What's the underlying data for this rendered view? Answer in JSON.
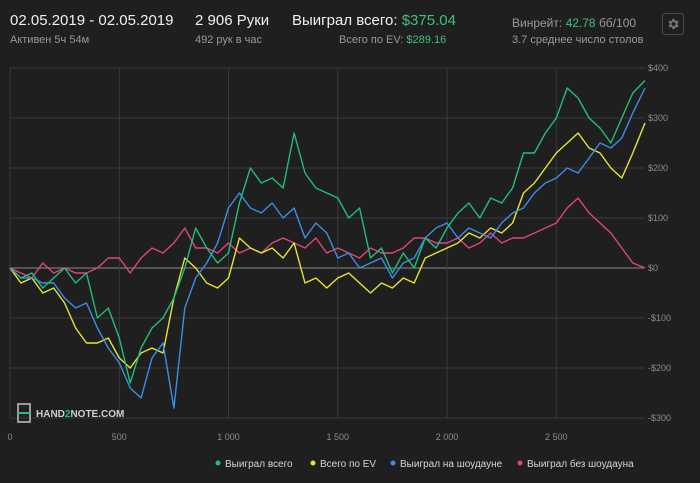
{
  "header": {
    "date_range": "02.05.2019 - 02.05.2019",
    "active": "Активен 5ч 54м",
    "hands": "2 906 Руки",
    "hands_per_hour": "492 рук в час",
    "won_total_label": "Выиграл всего:",
    "won_total_value": "$375.04",
    "ev_label": "Всего по EV:",
    "ev_value": "$289.16",
    "winrate_label": "Винрейт:",
    "winrate_value": "42.78",
    "winrate_unit": "бб/100",
    "avg_tables": "3.7 среднее число столов",
    "settings_icon": "gear-icon"
  },
  "logo": {
    "text_a": "HAND",
    "text_b": "2",
    "text_c": "NOTE.COM"
  },
  "colors": {
    "won": "#1fbf7a",
    "ev": "#e6e632",
    "showdown": "#3a8ee6",
    "non_showdown": "#e0457b",
    "accent_green": "#3cc07a"
  },
  "chart_data": {
    "type": "line",
    "title": "",
    "xlabel": "",
    "ylabel": "",
    "xlim": [
      0,
      2906
    ],
    "ylim": [
      -300,
      400
    ],
    "x_ticks": [
      0,
      500,
      1000,
      1500,
      2000,
      2500
    ],
    "x_tick_labels": [
      "0",
      "500",
      "1 000",
      "1 500",
      "2 000",
      "2 500"
    ],
    "y_ticks": [
      400,
      300,
      200,
      100,
      0,
      -100,
      -200,
      -300
    ],
    "y_tick_labels": [
      "$400",
      "$300",
      "$200",
      "$100",
      "$0",
      "-$100",
      "-$200",
      "-$300"
    ],
    "x": [
      0,
      50,
      100,
      150,
      200,
      250,
      300,
      350,
      400,
      450,
      500,
      550,
      600,
      650,
      700,
      750,
      800,
      850,
      900,
      950,
      1000,
      1050,
      1100,
      1150,
      1200,
      1250,
      1300,
      1350,
      1400,
      1450,
      1500,
      1550,
      1600,
      1650,
      1700,
      1750,
      1800,
      1850,
      1900,
      1950,
      2000,
      2050,
      2100,
      2150,
      2200,
      2250,
      2300,
      2350,
      2400,
      2450,
      2500,
      2550,
      2600,
      2650,
      2700,
      2750,
      2800,
      2850,
      2906
    ],
    "series": [
      {
        "name": "Выиграл всего",
        "values": [
          0,
          -20,
          -10,
          -40,
          -20,
          0,
          -30,
          -10,
          -100,
          -80,
          -140,
          -230,
          -160,
          -120,
          -100,
          -60,
          0,
          80,
          40,
          10,
          30,
          130,
          200,
          170,
          180,
          160,
          270,
          190,
          160,
          150,
          140,
          100,
          120,
          20,
          40,
          -10,
          30,
          0,
          60,
          40,
          80,
          110,
          130,
          100,
          140,
          130,
          160,
          230,
          230,
          270,
          300,
          360,
          340,
          300,
          280,
          250,
          300,
          350,
          375
        ]
      },
      {
        "name": "Всего по EV",
        "values": [
          0,
          -30,
          -20,
          -50,
          -40,
          -70,
          -120,
          -150,
          -150,
          -140,
          -180,
          -200,
          -170,
          -160,
          -170,
          -60,
          20,
          0,
          -30,
          -40,
          -20,
          60,
          40,
          30,
          40,
          20,
          50,
          -30,
          -20,
          -40,
          -20,
          -10,
          -30,
          -50,
          -30,
          -40,
          -20,
          -30,
          20,
          30,
          40,
          50,
          70,
          60,
          80,
          70,
          90,
          150,
          170,
          200,
          230,
          250,
          270,
          240,
          230,
          200,
          180,
          230,
          290
        ]
      },
      {
        "name": "Выиграл на шоудауне",
        "values": [
          0,
          -20,
          -20,
          -30,
          -30,
          -60,
          -80,
          -70,
          -120,
          -160,
          -190,
          -240,
          -260,
          -180,
          -150,
          -280,
          -80,
          -20,
          10,
          50,
          120,
          150,
          120,
          110,
          130,
          100,
          120,
          60,
          90,
          70,
          20,
          30,
          0,
          10,
          20,
          -20,
          10,
          20,
          60,
          80,
          90,
          60,
          80,
          70,
          60,
          90,
          110,
          120,
          150,
          170,
          180,
          200,
          190,
          220,
          250,
          240,
          260,
          310,
          360
        ]
      },
      {
        "name": "Выиграл без шоудауна",
        "values": [
          0,
          -10,
          -20,
          10,
          -10,
          0,
          -10,
          -10,
          0,
          20,
          20,
          -10,
          20,
          40,
          30,
          50,
          80,
          40,
          40,
          30,
          50,
          30,
          40,
          30,
          50,
          60,
          50,
          40,
          60,
          30,
          40,
          30,
          20,
          40,
          30,
          30,
          40,
          60,
          60,
          50,
          50,
          60,
          40,
          50,
          70,
          50,
          60,
          60,
          70,
          80,
          90,
          120,
          140,
          110,
          90,
          70,
          40,
          10,
          0
        ]
      }
    ],
    "legend_position": "bottom-right"
  }
}
